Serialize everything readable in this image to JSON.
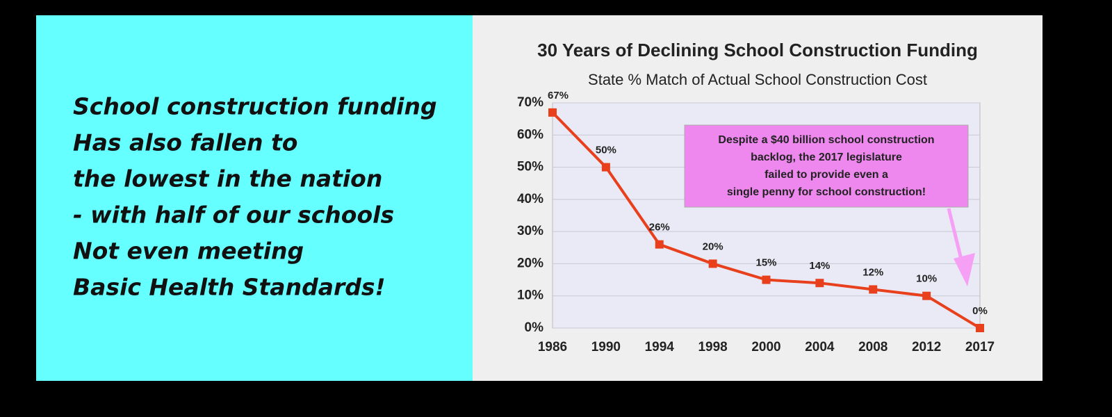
{
  "panel": {
    "lines": [
      "School construction funding",
      "Has also fallen to",
      "the lowest in the nation",
      "- with half of our schools",
      "Not even meeting",
      "Basic Health Standards!"
    ]
  },
  "chart_data": {
    "type": "line",
    "title": "30 Years of Declining School Construction Funding",
    "subtitle": "State % Match of Actual School Construction Cost",
    "categories": [
      "1986",
      "1990",
      "1994",
      "1998",
      "2000",
      "2004",
      "2008",
      "2012",
      "2017"
    ],
    "values": [
      67,
      50,
      26,
      20,
      15,
      14,
      12,
      10,
      0
    ],
    "value_labels": [
      "67%",
      "50%",
      "26%",
      "20%",
      "15%",
      "14%",
      "12%",
      "10%",
      "0%"
    ],
    "color": "#e8401c",
    "ylim": [
      0,
      70
    ],
    "yticks": [
      {
        "value": 0,
        "label": "0%"
      },
      {
        "value": 10,
        "label": "10%"
      },
      {
        "value": 20,
        "label": "20%"
      },
      {
        "value": 30,
        "label": "30%"
      },
      {
        "value": 40,
        "label": "40%"
      },
      {
        "value": 50,
        "label": "50%"
      },
      {
        "value": 60,
        "label": "60%"
      },
      {
        "value": 70,
        "label": "70%"
      }
    ],
    "grid": true,
    "annotation": [
      "Despite a $40 billion school construction",
      "backlog, the 2017 legislature",
      "failed to provide even a",
      "single penny for school construction!"
    ]
  }
}
